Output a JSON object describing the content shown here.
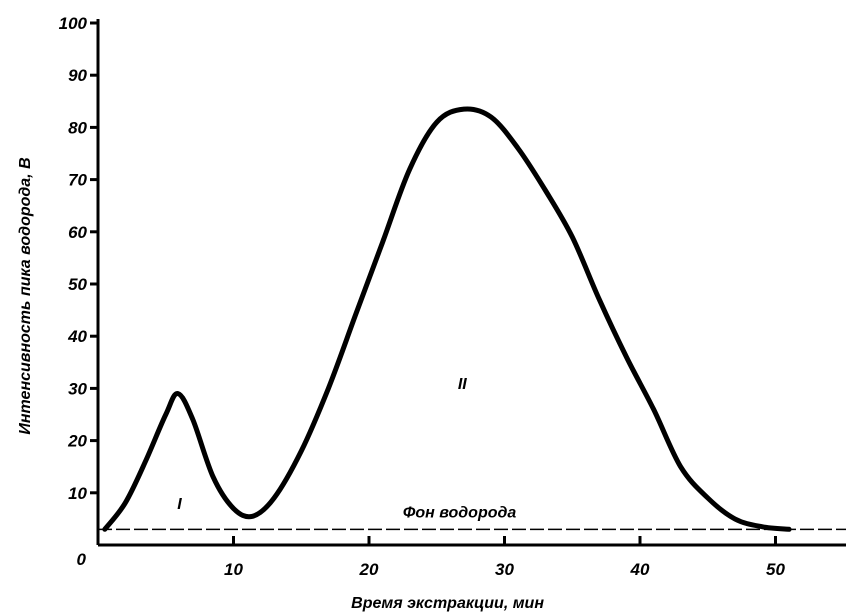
{
  "chart_data": {
    "type": "line",
    "xlabel": "Время экстракции, мин",
    "ylabel": "Интенсивность пика водорода, В",
    "xlim": [
      0,
      55
    ],
    "ylim": [
      0,
      100
    ],
    "x_ticks": [
      "10",
      "20",
      "30",
      "40",
      "50"
    ],
    "y_ticks": [
      "10",
      "20",
      "30",
      "40",
      "50",
      "60",
      "70",
      "80",
      "90",
      "100"
    ],
    "origin_label": "0",
    "grid": false,
    "legend": "none",
    "series": [
      {
        "x": [
          0.5,
          2,
          3.5,
          5,
          5.9,
          7,
          8.5,
          10,
          11.4,
          13,
          15,
          17,
          19,
          21,
          23,
          25,
          27,
          29,
          31,
          33,
          35,
          37,
          39,
          41,
          43,
          45,
          47,
          49,
          51
        ],
        "values": [
          3,
          8,
          16,
          25,
          29,
          24,
          13,
          7,
          5.5,
          9,
          18,
          30,
          44,
          58,
          72,
          81,
          83.5,
          82,
          76,
          68,
          59,
          47,
          36,
          26,
          15,
          9,
          5,
          3.5,
          3
        ]
      }
    ],
    "baseline": {
      "value": 3,
      "label": "Фон водорода"
    },
    "annotations": [
      {
        "text": "I",
        "x": 6,
        "y": 8
      },
      {
        "text": "II",
        "x": 27,
        "y": 31
      }
    ]
  }
}
